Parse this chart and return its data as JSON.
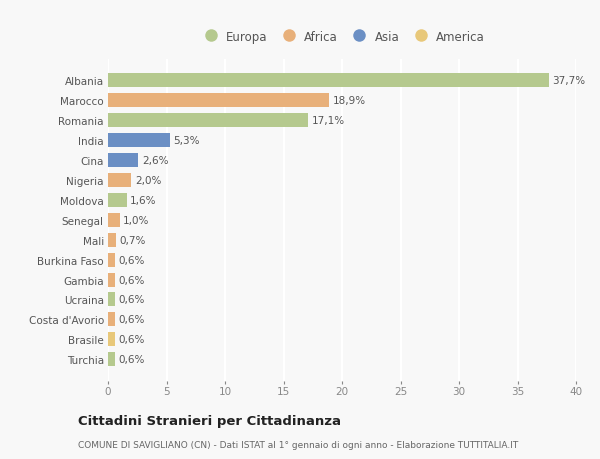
{
  "countries": [
    "Albania",
    "Marocco",
    "Romania",
    "India",
    "Cina",
    "Nigeria",
    "Moldova",
    "Senegal",
    "Mali",
    "Burkina Faso",
    "Gambia",
    "Ucraina",
    "Costa d'Avorio",
    "Brasile",
    "Turchia"
  ],
  "values": [
    37.7,
    18.9,
    17.1,
    5.3,
    2.6,
    2.0,
    1.6,
    1.0,
    0.7,
    0.6,
    0.6,
    0.6,
    0.6,
    0.6,
    0.6
  ],
  "labels": [
    "37,7%",
    "18,9%",
    "17,1%",
    "5,3%",
    "2,6%",
    "2,0%",
    "1,6%",
    "1,0%",
    "0,7%",
    "0,6%",
    "0,6%",
    "0,6%",
    "0,6%",
    "0,6%",
    "0,6%"
  ],
  "colors": [
    "#b5c98e",
    "#e8b07a",
    "#b5c98e",
    "#6b8fc4",
    "#6b8fc4",
    "#e8b07a",
    "#b5c98e",
    "#e8b07a",
    "#e8b07a",
    "#e8b07a",
    "#e8b07a",
    "#b5c98e",
    "#e8b07a",
    "#e8c87a",
    "#b5c98e"
  ],
  "legend_labels": [
    "Europa",
    "Africa",
    "Asia",
    "America"
  ],
  "legend_colors": [
    "#b5c98e",
    "#e8b07a",
    "#6b8fc4",
    "#e8c87a"
  ],
  "title": "Cittadini Stranieri per Cittadinanza",
  "subtitle": "COMUNE DI SAVIGLIANO (CN) - Dati ISTAT al 1° gennaio di ogni anno - Elaborazione TUTTITALIA.IT",
  "xlim": [
    0,
    40
  ],
  "xticks": [
    0,
    5,
    10,
    15,
    20,
    25,
    30,
    35,
    40
  ],
  "background_color": "#f8f8f8",
  "grid_color": "#ffffff",
  "bar_height": 0.7
}
